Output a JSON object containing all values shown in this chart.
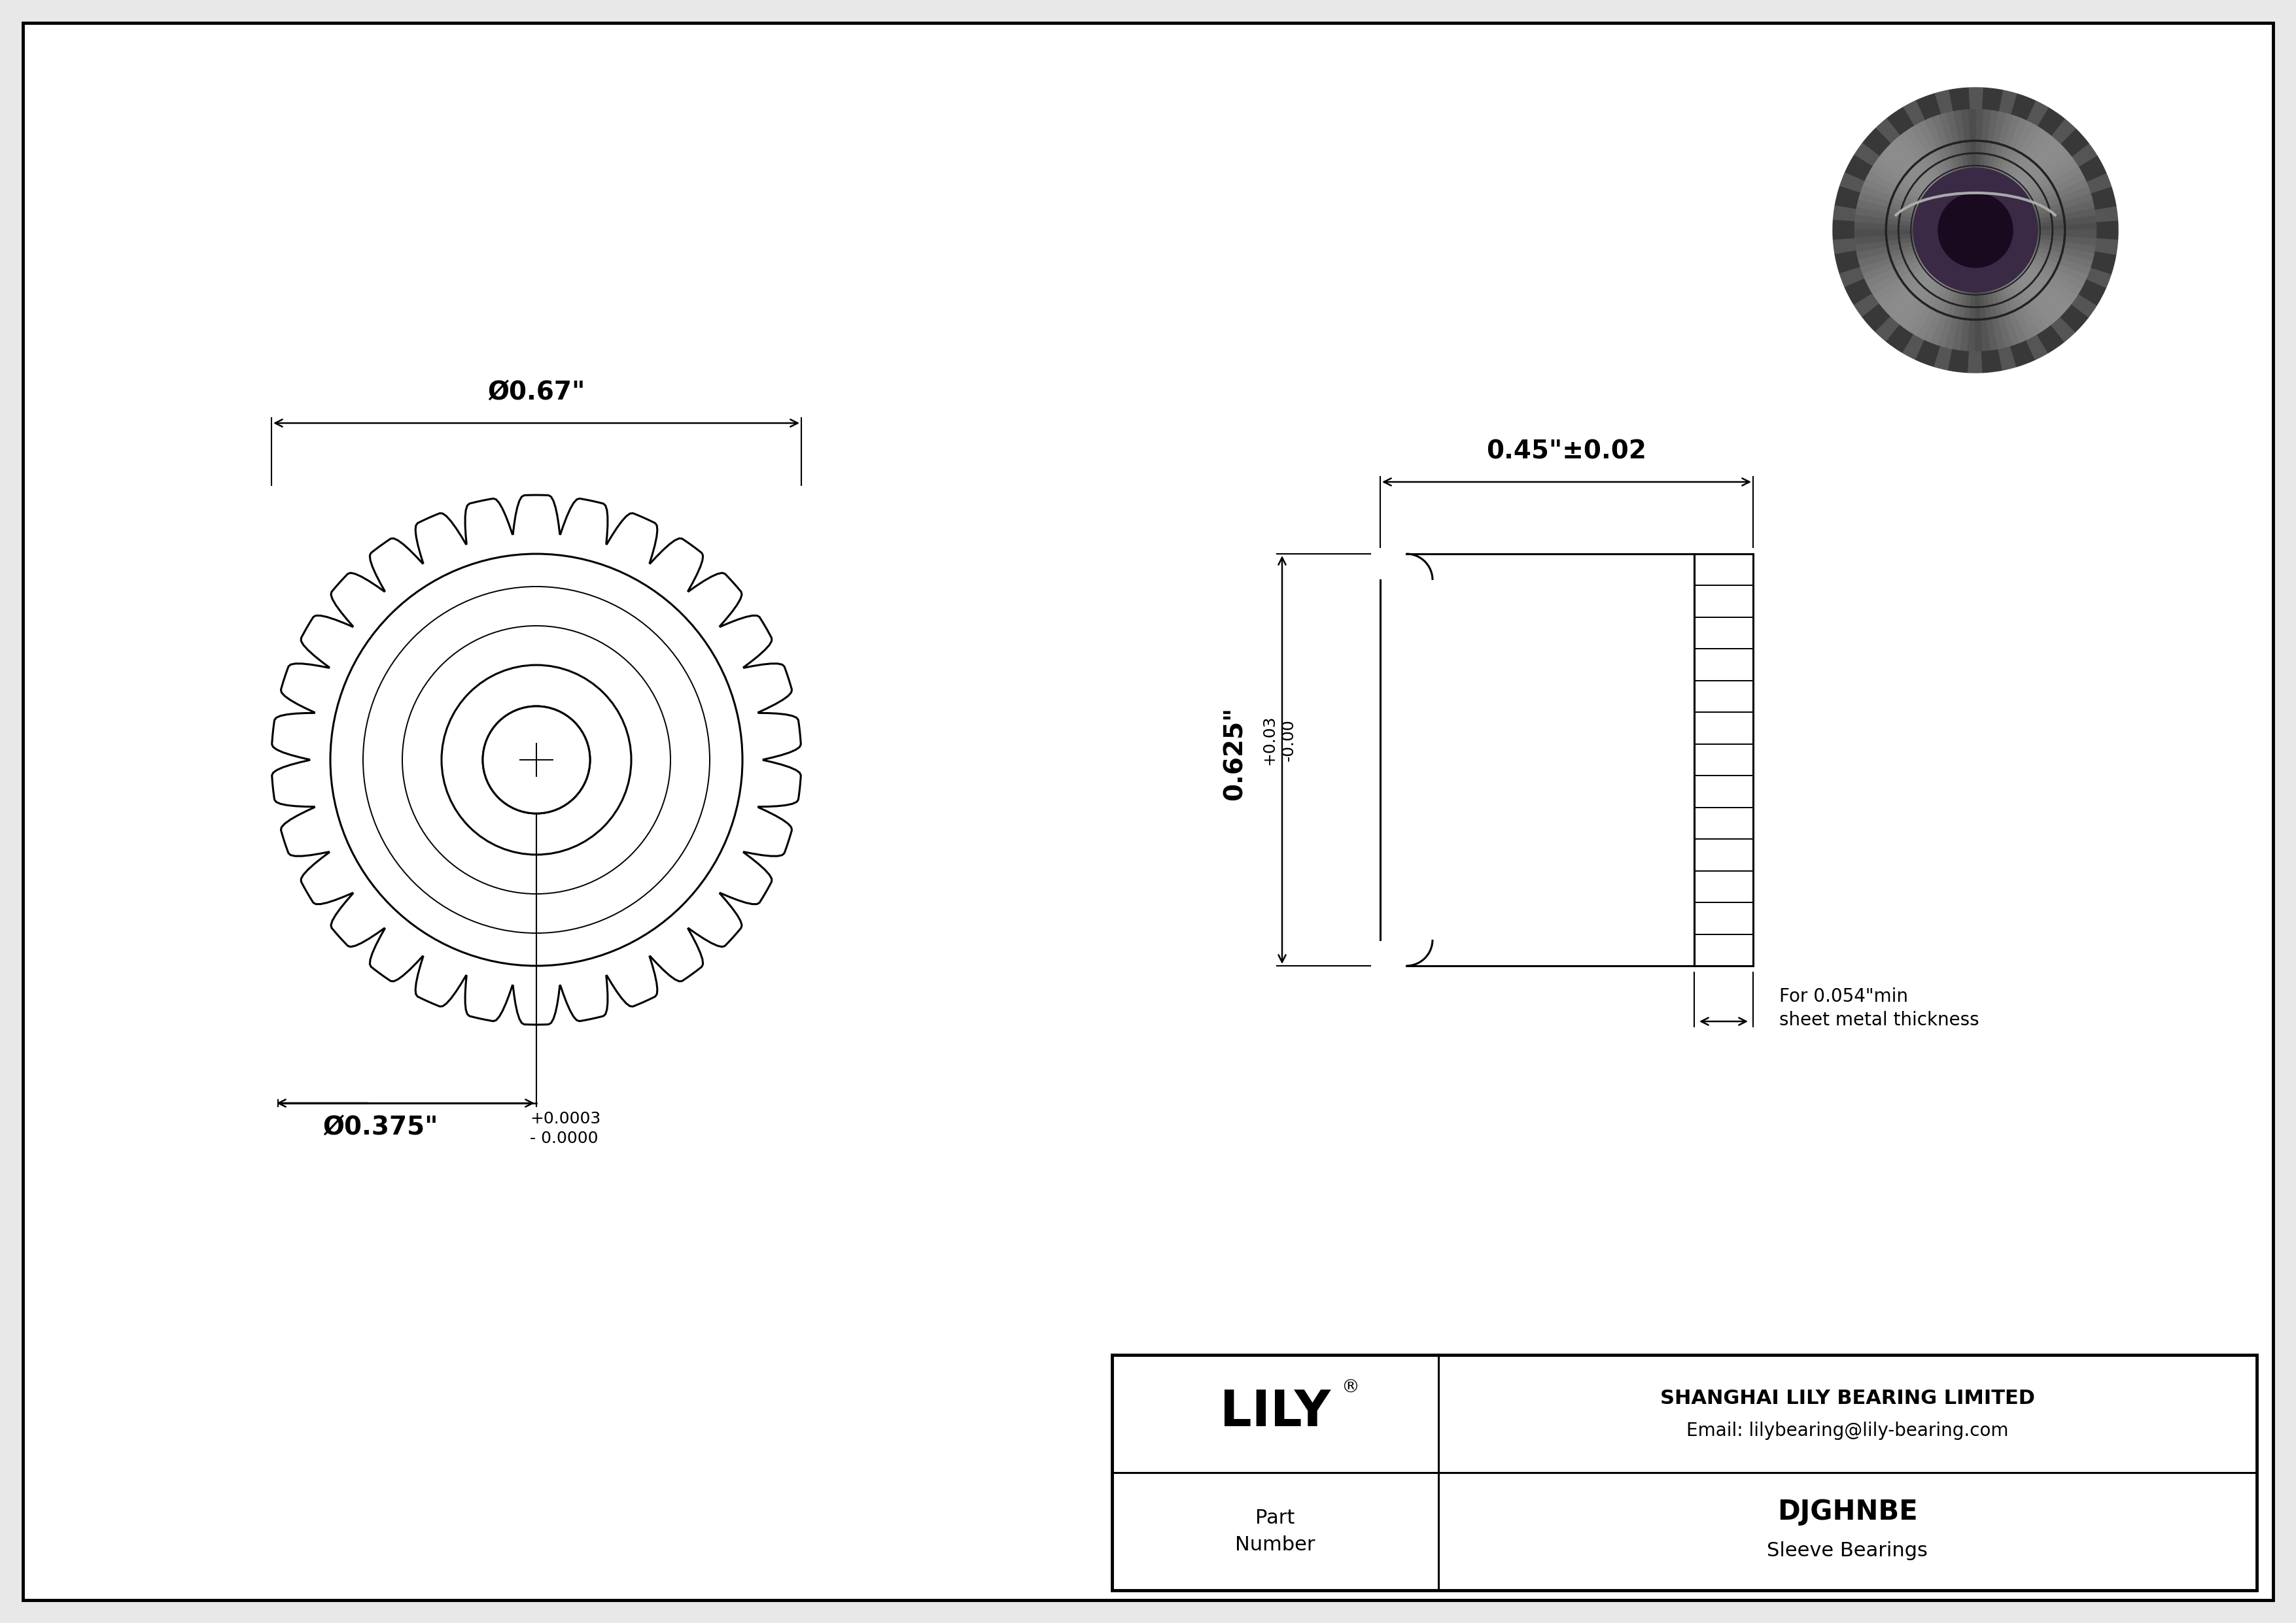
{
  "bg_color": "#e8e8e8",
  "drawing_bg": "#ffffff",
  "line_color": "#000000",
  "title": "DJGHNBE",
  "subtitle": "Sleeve Bearings",
  "company": "SHANGHAI LILY BEARING LIMITED",
  "email": "Email: lilybearing@lily-bearing.com",
  "dim_od": "Ø0.67\"",
  "dim_id_main": "Ø0.375\"",
  "dim_id_tol": "+0.0003\n- 0.0000",
  "dim_length": "0.45\"±0.02",
  "dim_height_main": "0.625\"",
  "dim_height_tol": "+0.03\n-0.00",
  "note_line1": "For 0.054\"min",
  "note_line2": "sheet metal thickness",
  "num_teeth": 30,
  "n_side_teeth": 13
}
